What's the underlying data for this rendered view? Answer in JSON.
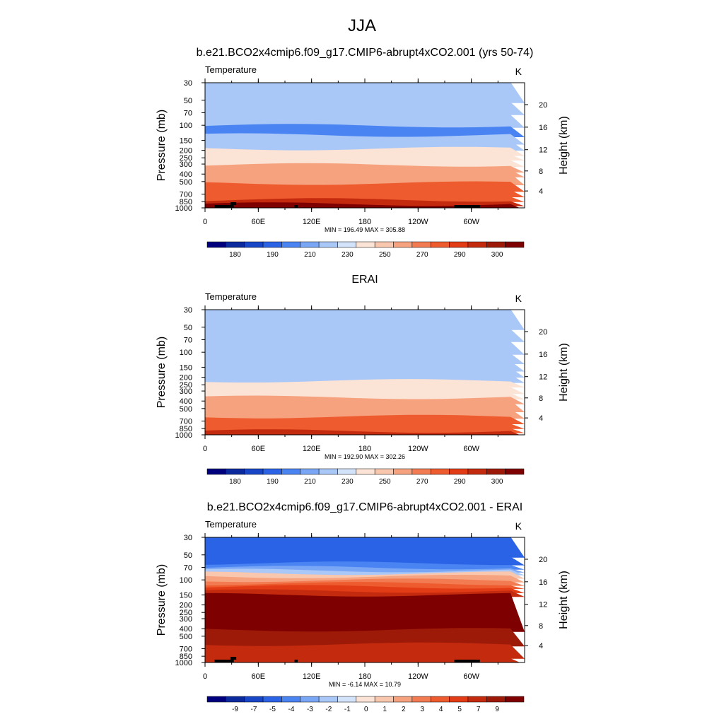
{
  "figure": {
    "title": "JJA"
  },
  "chart_data": [
    {
      "type": "heatmap",
      "title": "b.e21.BCO2x4cmip6.f09_g17.CMIP6-abrupt4xCO2.001 (yrs 50-74)",
      "variable_label": "Temperature",
      "units": "K",
      "ylabel": "Pressure (mb)",
      "ylabel_right": "Height (km)",
      "x_tick_labels": [
        "0",
        "60E",
        "120E",
        "180",
        "120W",
        "60W"
      ],
      "y_tick_labels": [
        "30",
        "50",
        "70",
        "100",
        "150",
        "200",
        "250",
        "300",
        "400",
        "500",
        "700",
        "850",
        "1000"
      ],
      "y_right_tick_labels": [
        "20",
        "16",
        "12",
        "8",
        "4"
      ],
      "stats": "MIN = 196.49  MAX = 305.88",
      "colorbar_levels": [
        "180",
        "190",
        "210",
        "230",
        "250",
        "270",
        "290",
        "300"
      ],
      "colorbar_colors": [
        "#00007f",
        "#0b2a9e",
        "#1746c7",
        "#2a63e6",
        "#4a84f2",
        "#7aa7f5",
        "#a9c7f7",
        "#d3e3fa",
        "#fbe4d6",
        "#f9c6ae",
        "#f6a27e",
        "#f27b52",
        "#ee5b2e",
        "#e23c16",
        "#c42a0e",
        "#9e1a08",
        "#7f0000"
      ],
      "bands": [
        {
          "p": 30,
          "v": 223
        },
        {
          "p": 50,
          "v": 218
        },
        {
          "p": 70,
          "v": 212
        },
        {
          "p": 100,
          "v": 208
        },
        {
          "p": 130,
          "v": 215
        },
        {
          "p": 160,
          "v": 222
        },
        {
          "p": 190,
          "v": 230
        },
        {
          "p": 220,
          "v": 240
        },
        {
          "p": 250,
          "v": 248
        },
        {
          "p": 300,
          "v": 255
        },
        {
          "p": 350,
          "v": 262
        },
        {
          "p": 400,
          "v": 268
        },
        {
          "p": 500,
          "v": 275
        },
        {
          "p": 600,
          "v": 282
        },
        {
          "p": 700,
          "v": 288
        },
        {
          "p": 800,
          "v": 294
        },
        {
          "p": 900,
          "v": 300
        }
      ]
    },
    {
      "type": "heatmap",
      "title": "ERAI",
      "variable_label": "Temperature",
      "units": "K",
      "ylabel": "Pressure (mb)",
      "ylabel_right": "Height (km)",
      "x_tick_labels": [
        "0",
        "60E",
        "120E",
        "180",
        "120W",
        "60W"
      ],
      "y_tick_labels": [
        "30",
        "50",
        "70",
        "100",
        "150",
        "200",
        "250",
        "300",
        "400",
        "500",
        "700",
        "850",
        "1000"
      ],
      "y_right_tick_labels": [
        "20",
        "16",
        "12",
        "8",
        "4"
      ],
      "stats": "MIN = 192.90  MAX = 302.26",
      "colorbar_levels": [
        "180",
        "190",
        "210",
        "230",
        "250",
        "270",
        "290",
        "300"
      ],
      "colorbar_colors": [
        "#00007f",
        "#0b2a9e",
        "#1746c7",
        "#2a63e6",
        "#4a84f2",
        "#7aa7f5",
        "#a9c7f7",
        "#d3e3fa",
        "#fbe4d6",
        "#f9c6ae",
        "#f6a27e",
        "#f27b52",
        "#ee5b2e",
        "#e23c16",
        "#c42a0e",
        "#9e1a08",
        "#7f0000"
      ],
      "bands": [
        {
          "p": 30,
          "v": 228
        },
        {
          "p": 50,
          "v": 220
        },
        {
          "p": 70,
          "v": 214
        },
        {
          "p": 100,
          "v": 210
        },
        {
          "p": 130,
          "v": 214
        },
        {
          "p": 160,
          "v": 219
        },
        {
          "p": 190,
          "v": 225
        },
        {
          "p": 220,
          "v": 232
        },
        {
          "p": 250,
          "v": 238
        },
        {
          "p": 300,
          "v": 245
        },
        {
          "p": 350,
          "v": 252
        },
        {
          "p": 400,
          "v": 258
        },
        {
          "p": 500,
          "v": 265
        },
        {
          "p": 600,
          "v": 272
        },
        {
          "p": 700,
          "v": 278
        },
        {
          "p": 800,
          "v": 284
        },
        {
          "p": 900,
          "v": 290
        }
      ]
    },
    {
      "type": "heatmap",
      "title": "b.e21.BCO2x4cmip6.f09_g17.CMIP6-abrupt4xCO2.001 - ERAI",
      "variable_label": "Temperature",
      "units": "K",
      "ylabel": "Pressure (mb)",
      "ylabel_right": "Height (km)",
      "x_tick_labels": [
        "0",
        "60E",
        "120E",
        "180",
        "120W",
        "60W"
      ],
      "y_tick_labels": [
        "30",
        "50",
        "70",
        "100",
        "150",
        "200",
        "250",
        "300",
        "400",
        "500",
        "700",
        "850",
        "1000"
      ],
      "y_right_tick_labels": [
        "20",
        "16",
        "12",
        "8",
        "4"
      ],
      "stats": "MIN =  -6.14  MAX =  10.79",
      "colorbar_levels": [
        "-9",
        "-7",
        "-5",
        "-4",
        "-3",
        "-2",
        "-1",
        "0",
        "1",
        "2",
        "3",
        "4",
        "5",
        "7",
        "9"
      ],
      "colorbar_colors": [
        "#00007f",
        "#0b2a9e",
        "#1746c7",
        "#2a63e6",
        "#4a84f2",
        "#7aa7f5",
        "#a9c7f7",
        "#d3e3fa",
        "#fbe4d6",
        "#f9c6ae",
        "#f6a27e",
        "#f27b52",
        "#ee5b2e",
        "#e23c16",
        "#c42a0e",
        "#9e1a08",
        "#7f0000"
      ],
      "bands": [
        {
          "p": 30,
          "v": -4.5
        },
        {
          "p": 50,
          "v": -4.2
        },
        {
          "p": 62,
          "v": -3.5
        },
        {
          "p": 70,
          "v": -2.5
        },
        {
          "p": 76,
          "v": -1.5
        },
        {
          "p": 82,
          "v": 0.5
        },
        {
          "p": 90,
          "v": 1.5
        },
        {
          "p": 100,
          "v": 2.5
        },
        {
          "p": 110,
          "v": 3.5
        },
        {
          "p": 120,
          "v": 4.5
        },
        {
          "p": 135,
          "v": 6
        },
        {
          "p": 150,
          "v": 9.5
        },
        {
          "p": 400,
          "v": 8
        },
        {
          "p": 600,
          "v": 6
        },
        {
          "p": 850,
          "v": 5
        }
      ]
    }
  ]
}
